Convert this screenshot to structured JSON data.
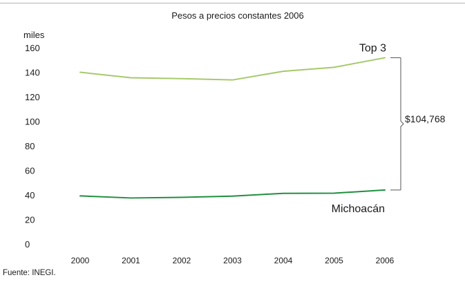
{
  "chart_data": {
    "type": "line",
    "title": "Pesos a precios constantes 2006",
    "ylabel": "miles",
    "xlabel": "",
    "categories": [
      "2000",
      "2001",
      "2002",
      "2003",
      "2004",
      "2005",
      "2006"
    ],
    "ylim": [
      0,
      160
    ],
    "yticks": [
      0,
      20,
      40,
      60,
      80,
      100,
      120,
      140,
      160
    ],
    "grid": false,
    "series": [
      {
        "name": "Top 3",
        "color": "#a6c96a",
        "values": [
          140,
          135.5,
          134.8,
          133.7,
          140.8,
          144,
          151.8
        ]
      },
      {
        "name": "Michoacán",
        "color": "#1f8f3d",
        "values": [
          39.2,
          37.5,
          38,
          39,
          41.3,
          41.4,
          44
        ]
      }
    ],
    "annotation": {
      "text": "$104,768",
      "color": "#555555"
    }
  },
  "footer": {
    "source": "Fuente: INEGI."
  }
}
